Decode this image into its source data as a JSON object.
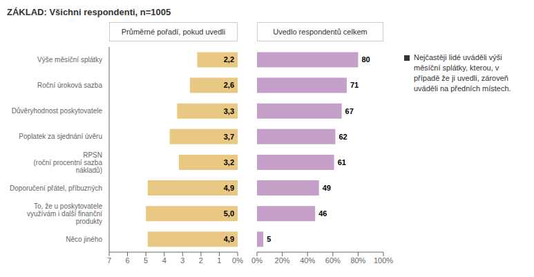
{
  "chart_data": [
    {
      "type": "bar",
      "orientation": "horizontal",
      "title": "ZÁKLAD: Všichni respondenti, n=1005",
      "subtitle": "Průměrné pořadí, pokud uvedli",
      "categories": [
        "Výše měsíční splátky",
        "Roční úroková sazba",
        "Důvěryhodnost poskytovatele",
        "Poplatek za sjednání úvěru",
        "RPSN\n(roční procentní sazba\nnákladů)",
        "Doporučení přátel, příbuzných",
        "To, že u poskytovatele\nvyužívám i další finanční\nprodukty",
        "Něco jiného"
      ],
      "values": [
        2.2,
        2.6,
        3.3,
        3.7,
        3.2,
        4.9,
        5.0,
        4.9
      ],
      "value_labels": [
        "2,2",
        "2,6",
        "3,3",
        "3,7",
        "3,2",
        "4,9",
        "5,0",
        "4,9"
      ],
      "data_labels": true,
      "color": "#E8C882",
      "xlim": [
        7,
        0
      ],
      "xticks": [
        7,
        6,
        5,
        4,
        3,
        2,
        1,
        {
          "value": 0,
          "label": "0%"
        }
      ]
    },
    {
      "type": "bar",
      "orientation": "horizontal",
      "subtitle": "Uvedlo respondentů celkem",
      "categories": [
        "Výše měsíční splátky",
        "Roční úroková sazba",
        "Důvěryhodnost poskytovatele",
        "Poplatek za sjednání úvěru",
        "RPSN\n(roční procentní sazba\nnákladů)",
        "Doporučení přátel, příbuzných",
        "To, že u poskytovatele\nvyužívám i další finanční\nprodukty",
        "Něco jiného"
      ],
      "values": [
        80,
        71,
        67,
        62,
        61,
        49,
        46,
        5
      ],
      "data_labels": true,
      "tick_labels": "x",
      "color": "#C4A0C8",
      "xlim": [
        0,
        100
      ],
      "xticks": [
        {
          "value": 0,
          "label": "0%"
        },
        {
          "value": 20,
          "label": "20%"
        },
        {
          "value": 40,
          "label": "40%"
        },
        {
          "value": 60,
          "label": "60%"
        },
        {
          "value": 80,
          "label": "80%"
        },
        {
          "value": 100,
          "label": "100%"
        }
      ],
      "annotations": [
        "Nejčastěji lidé uváděli výši\nměsíční splátky, kterou, v\npřípadě že ji uvedli, zároveň\nuváděli na předních místech."
      ]
    }
  ]
}
